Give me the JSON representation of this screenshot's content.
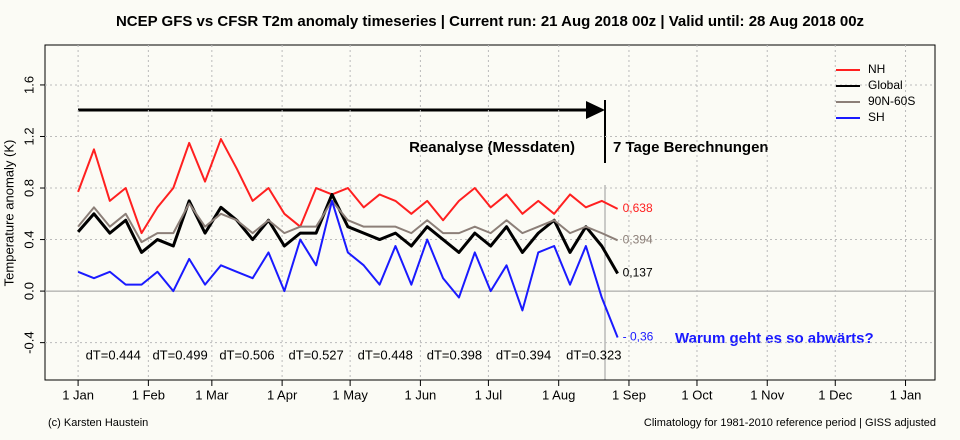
{
  "chart_data": {
    "type": "line",
    "title": "NCEP GFS vs CFSR T2m anomaly timeseries | Current run: 21 Aug 2018 00z | Valid until: 28 Aug 2018 00z",
    "y_label": "Temperature anomaly (K)",
    "x": [
      0,
      7,
      14,
      21,
      28,
      35,
      42,
      49,
      56,
      63,
      70,
      77,
      84,
      91,
      98,
      105,
      112,
      119,
      126,
      133,
      140,
      147,
      154,
      161,
      168,
      175,
      182,
      189,
      196,
      203,
      210,
      217,
      224,
      231,
      238
    ],
    "xlim": [
      -14.6,
      378
    ],
    "xticks": [
      {
        "value": 0,
        "label": "1 Jan"
      },
      {
        "value": 31,
        "label": "1 Feb"
      },
      {
        "value": 59,
        "label": "1 Mar"
      },
      {
        "value": 90,
        "label": "1 Apr"
      },
      {
        "value": 120,
        "label": "1 May"
      },
      {
        "value": 151,
        "label": "1 Jun"
      },
      {
        "value": 181,
        "label": "1 Jul"
      },
      {
        "value": 212,
        "label": "1 Aug"
      },
      {
        "value": 243,
        "label": "1 Sep"
      },
      {
        "value": 273,
        "label": "1 Oct"
      },
      {
        "value": 304,
        "label": "1 Nov"
      },
      {
        "value": 334,
        "label": "1 Dec"
      },
      {
        "value": 365,
        "label": "1 Jan"
      }
    ],
    "ylim": [
      -0.69,
      1.91
    ],
    "yticks": [
      -0.4,
      {
        "value": 0,
        "label": "0.0"
      },
      0.4,
      0.8,
      1.2,
      1.6
    ],
    "grid": true,
    "legend": "top-right",
    "series": [
      {
        "name": "NH",
        "color": "#ff2020",
        "values": [
          0.77,
          1.1,
          0.7,
          0.8,
          0.45,
          0.65,
          0.8,
          1.15,
          0.85,
          1.18,
          0.95,
          0.7,
          0.8,
          0.6,
          0.5,
          0.8,
          0.75,
          0.8,
          0.65,
          0.75,
          0.7,
          0.6,
          0.7,
          0.55,
          0.7,
          0.8,
          0.65,
          0.75,
          0.6,
          0.7,
          0.6,
          0.75,
          0.65,
          0.7,
          0.638
        ],
        "value_labels": [
          null,
          null,
          null,
          null,
          null,
          null,
          null,
          null,
          null,
          null,
          null,
          null,
          null,
          null,
          null,
          null,
          null,
          null,
          null,
          null,
          null,
          null,
          null,
          null,
          null,
          null,
          null,
          null,
          null,
          null,
          null,
          null,
          null,
          null,
          "0,638"
        ]
      },
      {
        "name": "Global",
        "color": "#000000",
        "values": [
          0.46,
          0.6,
          0.45,
          0.55,
          0.3,
          0.4,
          0.35,
          0.7,
          0.45,
          0.65,
          0.55,
          0.4,
          0.55,
          0.35,
          0.45,
          0.45,
          0.75,
          0.5,
          0.45,
          0.4,
          0.45,
          0.35,
          0.5,
          0.4,
          0.3,
          0.45,
          0.35,
          0.5,
          0.3,
          0.45,
          0.55,
          0.3,
          0.5,
          0.35,
          0.137
        ],
        "value_labels": [
          null,
          null,
          null,
          null,
          null,
          null,
          null,
          null,
          null,
          null,
          null,
          null,
          null,
          null,
          null,
          null,
          null,
          null,
          null,
          null,
          null,
          null,
          null,
          null,
          null,
          null,
          null,
          null,
          null,
          null,
          null,
          null,
          null,
          null,
          "0,137"
        ]
      },
      {
        "name": "90N-60S",
        "color": "#8c7f78",
        "values": [
          0.5,
          0.65,
          0.5,
          0.6,
          0.38,
          0.45,
          0.45,
          0.68,
          0.5,
          0.6,
          0.55,
          0.45,
          0.55,
          0.45,
          0.5,
          0.5,
          0.7,
          0.55,
          0.5,
          0.5,
          0.5,
          0.45,
          0.55,
          0.45,
          0.45,
          0.5,
          0.45,
          0.55,
          0.45,
          0.5,
          0.55,
          0.45,
          0.5,
          0.45,
          0.394
        ],
        "value_labels": [
          null,
          null,
          null,
          null,
          null,
          null,
          null,
          null,
          null,
          null,
          null,
          null,
          null,
          null,
          null,
          null,
          null,
          null,
          null,
          null,
          null,
          null,
          null,
          null,
          null,
          null,
          null,
          null,
          null,
          null,
          null,
          null,
          null,
          null,
          "0,394"
        ]
      },
      {
        "name": "SH",
        "color": "#1a1aff",
        "values": [
          0.15,
          0.1,
          0.15,
          0.05,
          0.05,
          0.15,
          0.0,
          0.25,
          0.05,
          0.2,
          0.15,
          0.1,
          0.3,
          0.0,
          0.4,
          0.2,
          0.7,
          0.3,
          0.2,
          0.05,
          0.35,
          0.05,
          0.4,
          0.1,
          -0.05,
          0.3,
          0.0,
          0.2,
          -0.15,
          0.3,
          0.35,
          0.05,
          0.35,
          -0.05,
          -0.36
        ],
        "value_labels": [
          null,
          null,
          null,
          null,
          null,
          null,
          null,
          null,
          null,
          null,
          null,
          null,
          null,
          null,
          null,
          null,
          null,
          null,
          null,
          null,
          null,
          null,
          null,
          null,
          null,
          null,
          null,
          null,
          null,
          null,
          null,
          null,
          null,
          null,
          "- 0,36"
        ]
      }
    ],
    "annotations": {
      "reanalysis": "Reanalyse (Messdaten)",
      "forecast": "7 Tage Berechnungen",
      "question": "Warum geht es so abwärts?",
      "dT": [
        "dT=0.444",
        "dT=0.499",
        "dT=0.506",
        "dT=0.527",
        "dT=0.448",
        "dT=0.398",
        "dT=0.394",
        "dT=0.323"
      ]
    },
    "credit": "(c) Karsten Haustein",
    "footnote": "Climatology for 1981-2010 reference period | GISS adjusted"
  }
}
